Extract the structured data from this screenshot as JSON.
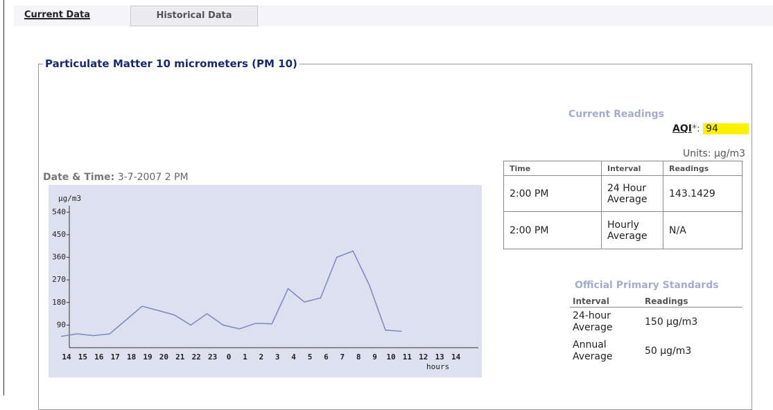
{
  "tabs": [
    "Current Data",
    "Historical Data"
  ],
  "section_title": "Particulate Matter 10 micrometers (PM 10)",
  "current_readings": {
    "title": "Current Readings",
    "aqi_label": "AQI",
    "aqi_suffix": "*:",
    "aqi_value": 94,
    "units": "Units: µg/m3",
    "table": {
      "header": [
        "Time",
        "Interval",
        "Readings"
      ],
      "rows": [
        [
          "2:00 PM",
          "24 Hour Average",
          "143.1429"
        ],
        [
          "2:00 PM",
          "Hourly Average",
          "N/A"
        ]
      ]
    }
  },
  "date_time": {
    "label": "Date & Time:",
    "value": "3-7-2007 2 PM"
  },
  "standards": {
    "title": "Official Primary Standards",
    "header": [
      "Interval",
      "Readings"
    ],
    "rows": [
      [
        "24-hour Average",
        "150 µg/m3"
      ],
      [
        "Annual Average",
        "50 µg/m3"
      ]
    ]
  },
  "chart_data": {
    "type": "line",
    "y_label": "µg/m3",
    "x_label": "hours",
    "categories": [
      "14",
      "15",
      "16",
      "17",
      "18",
      "19",
      "20",
      "21",
      "22",
      "23",
      "0",
      "1",
      "2",
      "3",
      "4",
      "5",
      "6",
      "7",
      "8",
      "9",
      "10",
      "11",
      "12",
      "13",
      "14"
    ],
    "values": [
      45,
      55,
      48,
      55,
      110,
      165,
      148,
      130,
      90,
      135,
      90,
      75,
      97,
      95,
      235,
      182,
      198,
      360,
      385,
      250,
      70,
      65,
      null,
      null,
      null
    ],
    "color": "#7a86c4",
    "ylim": [
      0,
      560
    ],
    "yticks": [
      90,
      180,
      270,
      360,
      450,
      540
    ]
  }
}
